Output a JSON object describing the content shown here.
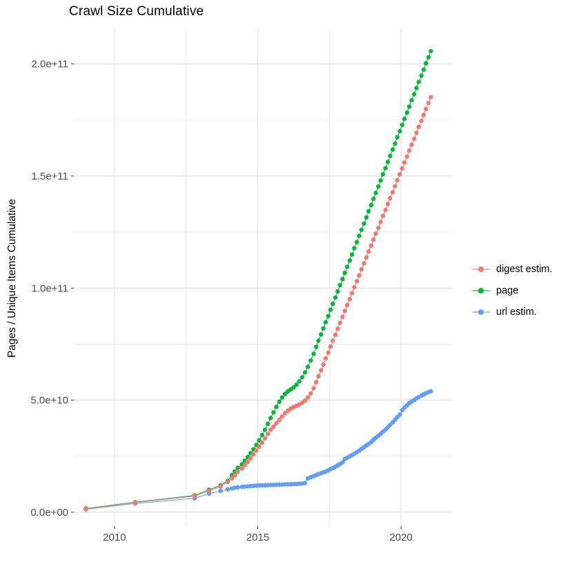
{
  "figure": {
    "background": "#ffffff"
  },
  "legend": {
    "items": [
      {
        "label": "digest estim.",
        "color": "#F8766D"
      },
      {
        "label": "page",
        "color": "#00BA38"
      },
      {
        "label": "url estim.",
        "color": "#619CFF"
      }
    ]
  },
  "chart_data": {
    "type": "line",
    "title": "Crawl Size Cumulative",
    "xlabel": "",
    "ylabel": "Pages / Unique Items Cumulative",
    "xlim": [
      2008.58,
      2021.78
    ],
    "ylim": [
      -6200000000.0,
      215600000000.0
    ],
    "grid": true,
    "legend_position": "right",
    "x_major_ticks": [
      2010,
      2015,
      2020
    ],
    "x_tick_labels": [
      "2010",
      "2015",
      "2020"
    ],
    "x_minor_ticks": [
      2012.5,
      2017.5
    ],
    "y_major_ticks": [
      0,
      50000000000.0,
      100000000000.0,
      150000000000.0,
      200000000000.0
    ],
    "y_tick_labels": [
      "0.0e+00",
      "5.0e+10",
      "1.0e+11",
      "1.5e+11",
      "2.0e+11"
    ],
    "y_minor_ticks": [
      25000000000.0,
      75000000000.0,
      125000000000.0,
      175000000000.0
    ],
    "colors": {
      "grid_major": "#e4e4e4",
      "grid_minor": "#efefef",
      "tick_mark": "#333333",
      "tick_text": "#4d4d4d",
      "digest": "#F8766D",
      "page": "#00BA38",
      "url": "#619CFF"
    },
    "series": [
      {
        "name": "digest estim.",
        "color": "#F8766D",
        "points": [
          [
            2009.0,
            1500000000.0
          ],
          [
            2010.72,
            4300000000.0
          ],
          [
            2012.8,
            7200000000.0
          ],
          [
            2013.3,
            9500000000.0
          ],
          [
            2013.7,
            11500000000.0
          ],
          [
            2013.95,
            13500000000.0
          ],
          [
            2014.1,
            15100000000.0
          ],
          [
            2014.2,
            16500000000.0
          ],
          [
            2014.3,
            18000000000.0
          ],
          [
            2014.45,
            19500000000.0
          ],
          [
            2014.55,
            21000000000.0
          ],
          [
            2014.65,
            22500000000.0
          ],
          [
            2014.75,
            24000000000.0
          ],
          [
            2014.85,
            25800000000.0
          ],
          [
            2014.95,
            27500000000.0
          ],
          [
            2015.05,
            29300000000.0
          ],
          [
            2015.15,
            31000000000.0
          ],
          [
            2015.25,
            33000000000.0
          ],
          [
            2015.35,
            35000000000.0
          ],
          [
            2015.45,
            36800000000.0
          ],
          [
            2015.55,
            38200000000.0
          ],
          [
            2015.65,
            39700000000.0
          ],
          [
            2015.75,
            41200000000.0
          ],
          [
            2015.85,
            42700000000.0
          ],
          [
            2015.95,
            44200000000.0
          ],
          [
            2016.05,
            45300000000.0
          ],
          [
            2016.15,
            46200000000.0
          ],
          [
            2016.25,
            46900000000.0
          ],
          [
            2016.35,
            47500000000.0
          ],
          [
            2016.45,
            48100000000.0
          ],
          [
            2016.55,
            48800000000.0
          ],
          [
            2016.65,
            49800000000.0
          ],
          [
            2016.75,
            51200000000.0
          ],
          [
            2016.85,
            53000000000.0
          ],
          [
            2016.95,
            55300000000.0
          ],
          [
            2017.04,
            58000000000.0
          ],
          [
            2017.12,
            60650000000.0
          ],
          [
            2017.21,
            63300000000.0
          ],
          [
            2017.29,
            65950000000.0
          ],
          [
            2017.37,
            68600000000.0
          ],
          [
            2017.46,
            71250000000.0
          ],
          [
            2017.54,
            73900000000.0
          ],
          [
            2017.62,
            76550000000.0
          ],
          [
            2017.71,
            79200000000.0
          ],
          [
            2017.79,
            81850000000.0
          ],
          [
            2017.87,
            84500000000.0
          ],
          [
            2017.96,
            87150000000.0
          ],
          [
            2018.04,
            89800000000.0
          ],
          [
            2018.12,
            92450000000.0
          ],
          [
            2018.21,
            95100000000.0
          ],
          [
            2018.29,
            97750000000.0
          ],
          [
            2018.37,
            100400000000.0
          ],
          [
            2018.46,
            103050000000.0
          ],
          [
            2018.54,
            105700000000.0
          ],
          [
            2018.62,
            108350000000.0
          ],
          [
            2018.71,
            111000000000.0
          ],
          [
            2018.79,
            113650000000.0
          ],
          [
            2018.87,
            116300000000.0
          ],
          [
            2018.96,
            118950000000.0
          ],
          [
            2019.04,
            121600000000.0
          ],
          [
            2019.12,
            124250000000.0
          ],
          [
            2019.21,
            126900000000.0
          ],
          [
            2019.29,
            129550000000.0
          ],
          [
            2019.37,
            132200000000.0
          ],
          [
            2019.46,
            134850000000.0
          ],
          [
            2019.54,
            137500000000.0
          ],
          [
            2019.62,
            140150000000.0
          ],
          [
            2019.71,
            142800000000.0
          ],
          [
            2019.79,
            145450000000.0
          ],
          [
            2019.87,
            148100000000.0
          ],
          [
            2019.96,
            150750000000.0
          ],
          [
            2020.04,
            153400000000.0
          ],
          [
            2020.12,
            156050000000.0
          ],
          [
            2020.21,
            158700000000.0
          ],
          [
            2020.29,
            161350000000.0
          ],
          [
            2020.37,
            164000000000.0
          ],
          [
            2020.46,
            166650000000.0
          ],
          [
            2020.54,
            169300000000.0
          ],
          [
            2020.62,
            171950000000.0
          ],
          [
            2020.71,
            174600000000.0
          ],
          [
            2020.79,
            177250000000.0
          ],
          [
            2020.87,
            179900000000.0
          ],
          [
            2020.96,
            182550000000.0
          ],
          [
            2021.04,
            185200000000.0
          ]
        ]
      },
      {
        "name": "page",
        "color": "#00BA38",
        "points": [
          [
            2009.0,
            1700000000.0
          ],
          [
            2010.72,
            4500000000.0
          ],
          [
            2012.8,
            7500000000.0
          ],
          [
            2013.3,
            10000000000.0
          ],
          [
            2013.7,
            12000000000.0
          ],
          [
            2013.95,
            14000000000.0
          ],
          [
            2014.1,
            16600000000.0
          ],
          [
            2014.2,
            18200000000.0
          ],
          [
            2014.3,
            19800000000.0
          ],
          [
            2014.45,
            21400000000.0
          ],
          [
            2014.55,
            23000000000.0
          ],
          [
            2014.65,
            24600000000.0
          ],
          [
            2014.75,
            26300000000.0
          ],
          [
            2014.85,
            28100000000.0
          ],
          [
            2014.95,
            30000000000.0
          ],
          [
            2015.05,
            32100000000.0
          ],
          [
            2015.15,
            34400000000.0
          ],
          [
            2015.25,
            36800000000.0
          ],
          [
            2015.35,
            39400000000.0
          ],
          [
            2015.45,
            42000000000.0
          ],
          [
            2015.55,
            44500000000.0
          ],
          [
            2015.65,
            47000000000.0
          ],
          [
            2015.75,
            49300000000.0
          ],
          [
            2015.85,
            51200000000.0
          ],
          [
            2015.95,
            52800000000.0
          ],
          [
            2016.05,
            53900000000.0
          ],
          [
            2016.15,
            54800000000.0
          ],
          [
            2016.25,
            55700000000.0
          ],
          [
            2016.35,
            56900000000.0
          ],
          [
            2016.45,
            58400000000.0
          ],
          [
            2016.55,
            60200000000.0
          ],
          [
            2016.65,
            62400000000.0
          ],
          [
            2016.75,
            64900000000.0
          ],
          [
            2016.85,
            67700000000.0
          ],
          [
            2016.95,
            70700000000.0
          ],
          [
            2017.04,
            73800000000.0
          ],
          [
            2017.12,
            76500000000.0
          ],
          [
            2017.21,
            79300000000.0
          ],
          [
            2017.29,
            82000000000.0
          ],
          [
            2017.37,
            84800000000.0
          ],
          [
            2017.46,
            87500000000.0
          ],
          [
            2017.54,
            90300000000.0
          ],
          [
            2017.62,
            93000000000.0
          ],
          [
            2017.71,
            95800000000.0
          ],
          [
            2017.79,
            98500000000.0
          ],
          [
            2017.87,
            101300000000.0
          ],
          [
            2017.96,
            104000000000.0
          ],
          [
            2018.04,
            106800000000.0
          ],
          [
            2018.12,
            109500000000.0
          ],
          [
            2018.21,
            112300000000.0
          ],
          [
            2018.29,
            115000000000.0
          ],
          [
            2018.37,
            117800000000.0
          ],
          [
            2018.46,
            120500000000.0
          ],
          [
            2018.54,
            123300000000.0
          ],
          [
            2018.62,
            126000000000.0
          ],
          [
            2018.71,
            128800000000.0
          ],
          [
            2018.79,
            131500000000.0
          ],
          [
            2018.87,
            134300000000.0
          ],
          [
            2018.96,
            137000000000.0
          ],
          [
            2019.04,
            139800000000.0
          ],
          [
            2019.12,
            142500000000.0
          ],
          [
            2019.21,
            145300000000.0
          ],
          [
            2019.29,
            148000000000.0
          ],
          [
            2019.37,
            150800000000.0
          ],
          [
            2019.46,
            153500000000.0
          ],
          [
            2019.54,
            156300000000.0
          ],
          [
            2019.62,
            159000000000.0
          ],
          [
            2019.71,
            161800000000.0
          ],
          [
            2019.79,
            164500000000.0
          ],
          [
            2019.87,
            167300000000.0
          ],
          [
            2019.96,
            170000000000.0
          ],
          [
            2020.04,
            172800000000.0
          ],
          [
            2020.12,
            175500000000.0
          ],
          [
            2020.21,
            178300000000.0
          ],
          [
            2020.29,
            181000000000.0
          ],
          [
            2020.37,
            183800000000.0
          ],
          [
            2020.46,
            186500000000.0
          ],
          [
            2020.54,
            189300000000.0
          ],
          [
            2020.62,
            192000000000.0
          ],
          [
            2020.71,
            194800000000.0
          ],
          [
            2020.79,
            197500000000.0
          ],
          [
            2020.87,
            200300000000.0
          ],
          [
            2020.96,
            203000000000.0
          ],
          [
            2021.04,
            205700000000.0
          ]
        ]
      },
      {
        "name": "url estim.",
        "color": "#619CFF",
        "points": [
          [
            2009.0,
            1300000000.0
          ],
          [
            2010.72,
            3900000000.0
          ],
          [
            2012.8,
            6200000000.0
          ],
          [
            2013.3,
            8300000000.0
          ],
          [
            2013.7,
            9500000000.0
          ],
          [
            2013.95,
            10200000000.0
          ],
          [
            2014.1,
            10600000000.0
          ],
          [
            2014.2,
            10900000000.0
          ],
          [
            2014.3,
            11100000000.0
          ],
          [
            2014.45,
            11300000000.0
          ],
          [
            2014.55,
            11450000000.0
          ],
          [
            2014.65,
            11550000000.0
          ],
          [
            2014.75,
            11650000000.0
          ],
          [
            2014.85,
            11750000000.0
          ],
          [
            2014.95,
            11850000000.0
          ],
          [
            2015.05,
            11950000000.0
          ],
          [
            2015.15,
            12000000000.0
          ],
          [
            2015.25,
            12050000000.0
          ],
          [
            2015.35,
            12100000000.0
          ],
          [
            2015.45,
            12150000000.0
          ],
          [
            2015.55,
            12200000000.0
          ],
          [
            2015.65,
            12250000000.0
          ],
          [
            2015.75,
            12300000000.0
          ],
          [
            2015.85,
            12350000000.0
          ],
          [
            2015.95,
            12400000000.0
          ],
          [
            2016.05,
            12450000000.0
          ],
          [
            2016.15,
            12500000000.0
          ],
          [
            2016.25,
            12550000000.0
          ],
          [
            2016.35,
            12600000000.0
          ],
          [
            2016.45,
            12700000000.0
          ],
          [
            2016.55,
            12800000000.0
          ],
          [
            2016.65,
            13000000000.0
          ],
          [
            2016.75,
            15100000000.0
          ],
          [
            2016.85,
            15600000000.0
          ],
          [
            2016.95,
            16100000000.0
          ],
          [
            2017.04,
            16600000000.0
          ],
          [
            2017.12,
            17000000000.0
          ],
          [
            2017.21,
            17400000000.0
          ],
          [
            2017.29,
            17800000000.0
          ],
          [
            2017.37,
            18200000000.0
          ],
          [
            2017.46,
            18700000000.0
          ],
          [
            2017.54,
            19200000000.0
          ],
          [
            2017.62,
            19700000000.0
          ],
          [
            2017.71,
            20300000000.0
          ],
          [
            2017.79,
            20900000000.0
          ],
          [
            2017.87,
            21500000000.0
          ],
          [
            2017.96,
            22200000000.0
          ],
          [
            2018.04,
            23700000000.0
          ],
          [
            2018.12,
            24300000000.0
          ],
          [
            2018.21,
            24900000000.0
          ],
          [
            2018.29,
            25500000000.0
          ],
          [
            2018.37,
            26100000000.0
          ],
          [
            2018.46,
            26800000000.0
          ],
          [
            2018.54,
            27500000000.0
          ],
          [
            2018.62,
            28200000000.0
          ],
          [
            2018.71,
            29000000000.0
          ],
          [
            2018.79,
            29800000000.0
          ],
          [
            2018.87,
            30500000000.0
          ],
          [
            2018.96,
            31300000000.0
          ],
          [
            2019.04,
            32300000000.0
          ],
          [
            2019.12,
            33200000000.0
          ],
          [
            2019.21,
            34100000000.0
          ],
          [
            2019.29,
            35000000000.0
          ],
          [
            2019.37,
            35900000000.0
          ],
          [
            2019.46,
            36900000000.0
          ],
          [
            2019.54,
            37900000000.0
          ],
          [
            2019.62,
            39000000000.0
          ],
          [
            2019.71,
            40100000000.0
          ],
          [
            2019.79,
            41200000000.0
          ],
          [
            2019.87,
            42400000000.0
          ],
          [
            2019.96,
            43600000000.0
          ],
          [
            2020.04,
            45600000000.0
          ],
          [
            2020.12,
            46700000000.0
          ],
          [
            2020.21,
            47700000000.0
          ],
          [
            2020.29,
            48700000000.0
          ],
          [
            2020.37,
            49400000000.0
          ],
          [
            2020.46,
            50100000000.0
          ],
          [
            2020.54,
            50800000000.0
          ],
          [
            2020.62,
            51400000000.0
          ],
          [
            2020.71,
            52000000000.0
          ],
          [
            2020.79,
            52600000000.0
          ],
          [
            2020.87,
            53100000000.0
          ],
          [
            2020.96,
            53600000000.0
          ],
          [
            2021.04,
            54000000000.0
          ]
        ]
      }
    ]
  }
}
